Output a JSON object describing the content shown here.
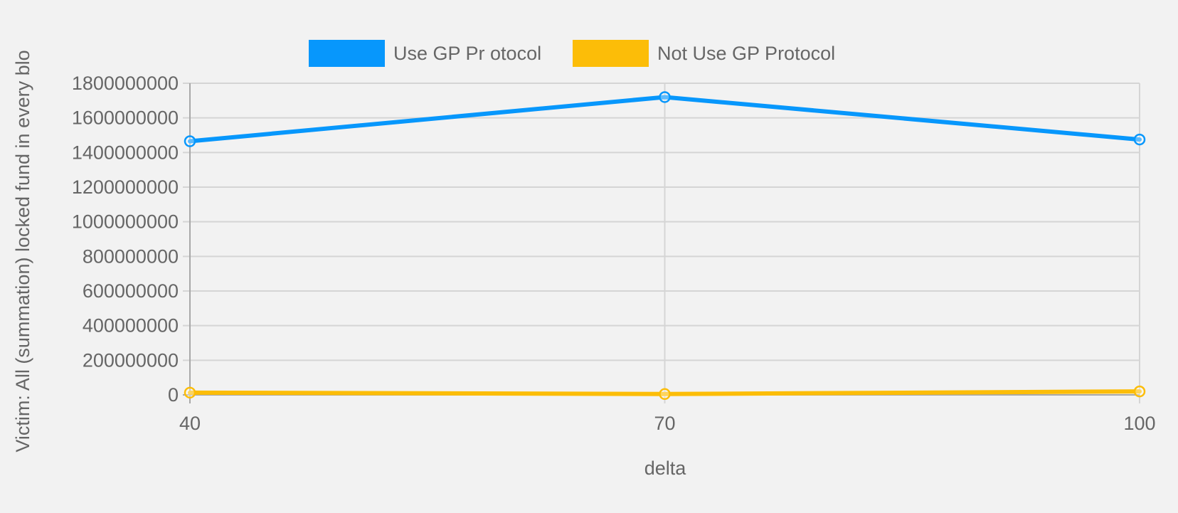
{
  "chart_data": {
    "type": "line",
    "title": "",
    "xlabel": "delta",
    "ylabel": "Victim: All (summation) locked fund in every blo",
    "x": [
      40,
      70,
      100
    ],
    "xlim": [
      40,
      100
    ],
    "ylim": [
      0,
      1800000000
    ],
    "yticks": [
      0,
      200000000,
      400000000,
      600000000,
      800000000,
      1000000000,
      1200000000,
      1400000000,
      1600000000,
      1800000000
    ],
    "grid": true,
    "legend_position": "top",
    "series": [
      {
        "name": "Use GP Pr otocol",
        "color": "#0797fc",
        "values": [
          1465000000,
          1720000000,
          1475000000
        ]
      },
      {
        "name": "Not Use GP Protocol",
        "color": "#fcbd08",
        "values": [
          13000000,
          5000000,
          20000000
        ]
      }
    ]
  }
}
